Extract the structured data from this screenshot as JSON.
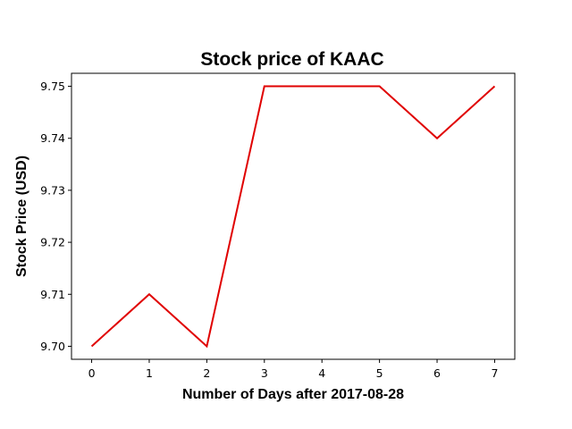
{
  "chart_data": {
    "type": "line",
    "title": "Stock price of KAAC",
    "xlabel": "Number of Days after 2017-08-28",
    "ylabel": "Stock Price (USD)",
    "x": [
      0,
      1,
      2,
      3,
      4,
      5,
      6,
      7
    ],
    "series": [
      {
        "values": [
          9.7,
          9.71,
          9.7,
          9.75,
          9.75,
          9.75,
          9.74,
          9.75
        ],
        "color": "#e00000"
      }
    ],
    "xlim": [
      -0.35,
      7.35
    ],
    "ylim": [
      9.6975,
      9.7525
    ],
    "xticks": [
      "0",
      "1",
      "2",
      "3",
      "4",
      "5",
      "6",
      "7"
    ],
    "yticks": [
      "9.70",
      "9.71",
      "9.72",
      "9.73",
      "9.74",
      "9.75"
    ],
    "grid": false
  }
}
